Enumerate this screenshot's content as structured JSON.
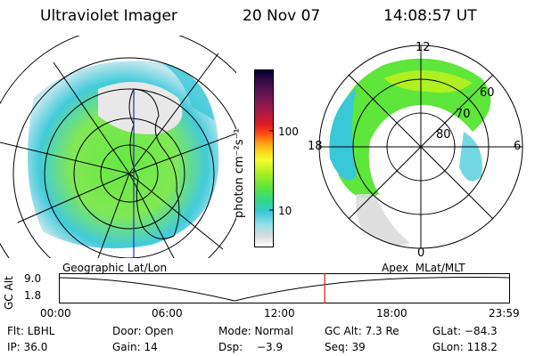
{
  "header": {
    "instrument": "Ultraviolet Imager",
    "date": "20 Nov 07",
    "time": "14:08:57 UT"
  },
  "colorbar": {
    "unit_label": "photon cm⁻²s⁻¹",
    "ticks": [
      "100",
      "10"
    ],
    "colors": [
      "#000033",
      "#3b0a4a",
      "#7a1a55",
      "#b01a40",
      "#e01a20",
      "#ff4a10",
      "#ff9a10",
      "#ffd31a",
      "#f2ff30",
      "#b0f020",
      "#5ee63a",
      "#2fd88a",
      "#39c8d8",
      "#8fdfe8",
      "#dcdcdc",
      "#ffffff"
    ]
  },
  "left_panel": {
    "caption": "Geographic Lat/Lon"
  },
  "right_panel": {
    "caption": "Apex  MLat/MLT",
    "mlt_labels": [
      "12",
      "18",
      "6",
      "0"
    ],
    "lat_labels": [
      "60",
      "70",
      "80"
    ]
  },
  "timeline": {
    "axis_label": "GC Alt",
    "y_ticks": [
      "9.0",
      "1.8"
    ],
    "x_ticks": [
      "00:00",
      "06:00",
      "12:00",
      "18:00",
      "23:59"
    ],
    "current_fraction": 0.5896
  },
  "status": {
    "row1": {
      "filter": "Flt: LBHL",
      "door": "Door: Open",
      "mode": "Mode: Normal",
      "gc_alt": "GC Alt: 7.3 Re",
      "glat": "GLat: −84.3"
    },
    "row2": {
      "ip": "IP: 36.0",
      "gain": "Gain: 14",
      "dsp_label": "Dsp:",
      "dsp_value": "−3.9",
      "seq": "Seq: 39",
      "glon": "GLon: 118.2"
    }
  }
}
